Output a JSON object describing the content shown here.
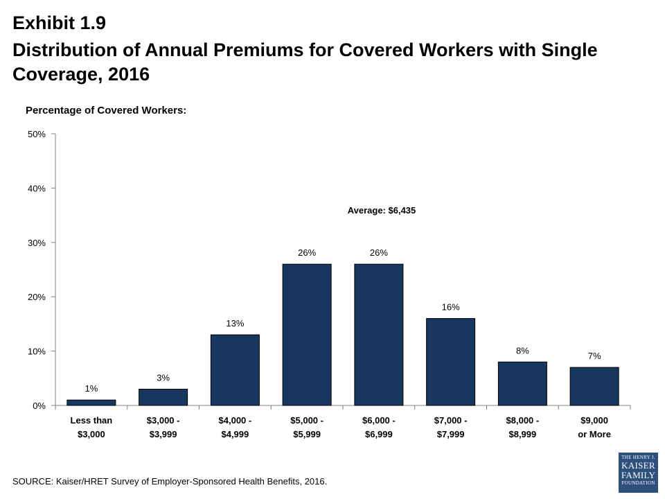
{
  "header": {
    "exhibit": "Exhibit 1.9",
    "title": "Distribution of Annual Premiums for Covered Workers with Single Coverage, 2016"
  },
  "footer": {
    "source": "SOURCE:  Kaiser/HRET Survey of Employer-Sponsored Health Benefits, 2016."
  },
  "logo": {
    "line1": "THE HENRY J.",
    "line2": "KAISER",
    "line3": "FAMILY",
    "line4": "FOUNDATION"
  },
  "colors": {
    "bar": "#17375e",
    "axis": "#808080",
    "logo": "#2c4f7c"
  },
  "chart_data": {
    "type": "bar",
    "ylabel": "Percentage of Covered Workers:",
    "xlabel": "",
    "ylim": [
      0,
      50
    ],
    "yticks": [
      "0%",
      "10%",
      "20%",
      "30%",
      "40%",
      "50%"
    ],
    "grid": false,
    "categories": [
      [
        "Less than",
        "$3,000"
      ],
      [
        "$3,000 -",
        "$3,999"
      ],
      [
        "$4,000 -",
        "$4,999"
      ],
      [
        "$5,000 -",
        "$5,999"
      ],
      [
        "$6,000 -",
        "$6,999"
      ],
      [
        "$7,000 -",
        "$7,999"
      ],
      [
        "$8,000 -",
        "$8,999"
      ],
      [
        "$9,000",
        "or More"
      ]
    ],
    "values": [
      1,
      3,
      13,
      26,
      26,
      16,
      8,
      7
    ],
    "data_labels": [
      "1%",
      "3%",
      "13%",
      "26%",
      "26%",
      "16%",
      "8%",
      "7%"
    ],
    "annotation": "Average: $6,435"
  }
}
